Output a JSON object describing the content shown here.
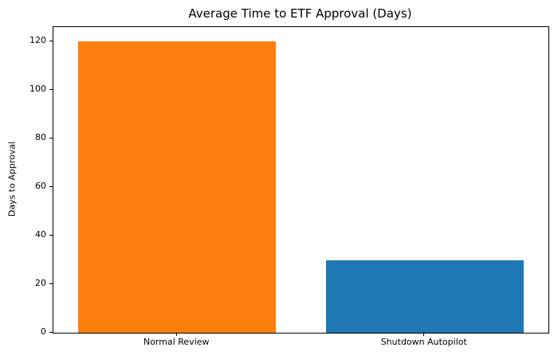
{
  "chart_data": {
    "type": "bar",
    "title": "Average Time to ETF Approval (Days)",
    "ylabel": "Days to Approval",
    "xlabel": "",
    "categories": [
      "Normal Review",
      "Shutdown Autopilot"
    ],
    "values": [
      120,
      30
    ],
    "bar_colors": [
      "#ff7f0e",
      "#1f77b4"
    ],
    "yticks": [
      0,
      20,
      40,
      60,
      80,
      100,
      120
    ],
    "ylim": [
      0,
      126
    ],
    "bar_band_fraction": 0.8,
    "grid": false,
    "legend": "none",
    "background_color": "#ffffff",
    "axis_color": "#000000",
    "text_color": "#000000"
  }
}
